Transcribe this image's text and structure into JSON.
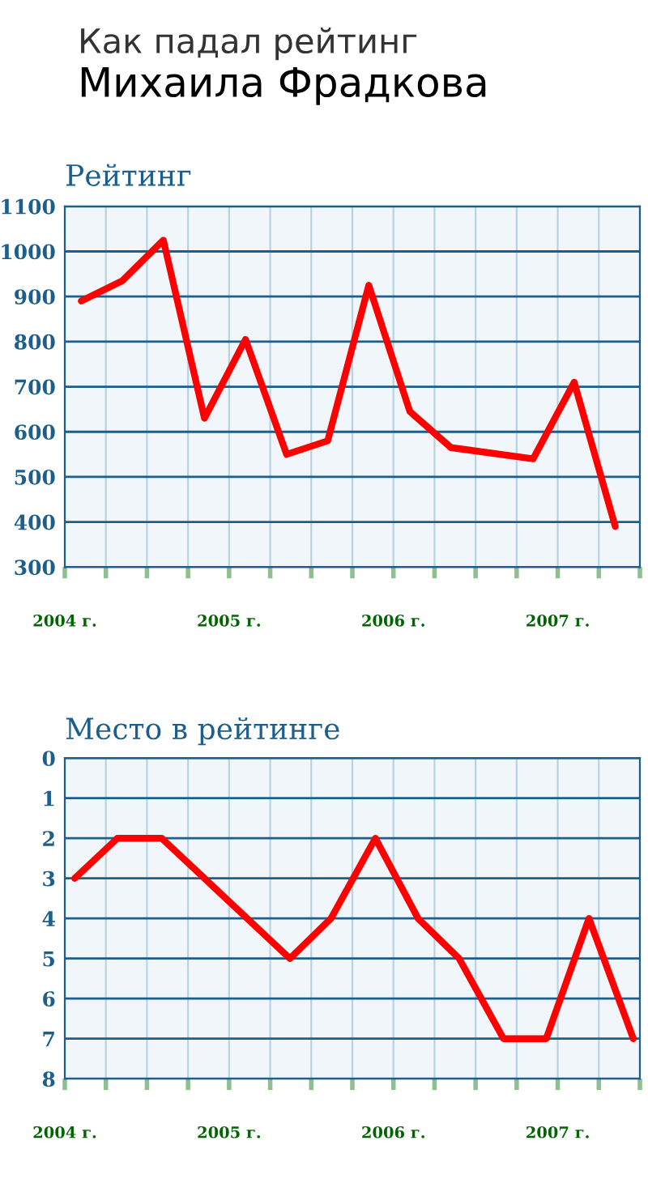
{
  "chart_data": [
    {
      "type": "line",
      "title": "Как падал рейтинг",
      "subtitle": "Михаила Фрадкова",
      "ylabel": "Рейтинг",
      "x": [
        2004.1,
        2004.35,
        2004.6,
        2004.85,
        2005.1,
        2005.35,
        2005.6,
        2005.85,
        2006.1,
        2006.35,
        2006.85,
        2007.1,
        2007.35
      ],
      "series": [
        {
          "color": "#ff0000",
          "values": [
            890,
            935,
            1025,
            630,
            805,
            550,
            580,
            925,
            645,
            565,
            540,
            710,
            390
          ]
        }
      ],
      "xlim": [
        2004,
        2007.5
      ],
      "xticks": [
        {
          "value": 2004,
          "label": "2004 г."
        },
        {
          "value": 2004.25,
          "label": null
        },
        {
          "value": 2004.5,
          "label": null
        },
        {
          "value": 2004.75,
          "label": null
        },
        {
          "value": 2005,
          "label": "2005 г."
        },
        {
          "value": 2005.25,
          "label": null
        },
        {
          "value": 2005.5,
          "label": null
        },
        {
          "value": 2005.75,
          "label": null
        },
        {
          "value": 2006,
          "label": "2006 г."
        },
        {
          "value": 2006.25,
          "label": null
        },
        {
          "value": 2006.5,
          "label": null
        },
        {
          "value": 2006.75,
          "label": null
        },
        {
          "value": 2007,
          "label": "2007 г."
        },
        {
          "value": 2007.25,
          "label": null
        },
        {
          "value": 2007.5,
          "label": null
        }
      ],
      "ylim": [
        300,
        1100
      ],
      "yticks": [
        300,
        400,
        500,
        600,
        700,
        800,
        900,
        1000,
        1100
      ],
      "grid": true,
      "line_style": "solid",
      "marker": "none"
    },
    {
      "type": "line",
      "ylabel": "Место в рейтинге",
      "x": [
        2004.06,
        2004.32,
        2004.59,
        2005.37,
        2005.62,
        2005.89,
        2006.15,
        2006.4,
        2006.67,
        2006.93,
        2007.19,
        2007.46
      ],
      "series": [
        {
          "color": "#ff0000",
          "values": [
            3,
            2,
            2,
            5,
            4,
            2,
            4,
            5,
            7,
            7,
            4,
            7
          ]
        }
      ],
      "xlim": [
        2004,
        2007.5
      ],
      "xticks": [
        {
          "value": 2004,
          "label": "2004 г."
        },
        {
          "value": 2004.25,
          "label": null
        },
        {
          "value": 2004.5,
          "label": null
        },
        {
          "value": 2004.75,
          "label": null
        },
        {
          "value": 2005,
          "label": "2005 г."
        },
        {
          "value": 2005.25,
          "label": null
        },
        {
          "value": 2005.5,
          "label": null
        },
        {
          "value": 2005.75,
          "label": null
        },
        {
          "value": 2006,
          "label": "2006 г."
        },
        {
          "value": 2006.25,
          "label": null
        },
        {
          "value": 2006.5,
          "label": null
        },
        {
          "value": 2006.75,
          "label": null
        },
        {
          "value": 2007,
          "label": "2007 г."
        },
        {
          "value": 2007.25,
          "label": null
        },
        {
          "value": 2007.5,
          "label": null
        }
      ],
      "ylim": [
        8,
        0
      ],
      "yticks": [
        0,
        1,
        2,
        3,
        4,
        5,
        6,
        7,
        8
      ],
      "grid": true,
      "line_style": "solid",
      "marker": "none"
    }
  ]
}
